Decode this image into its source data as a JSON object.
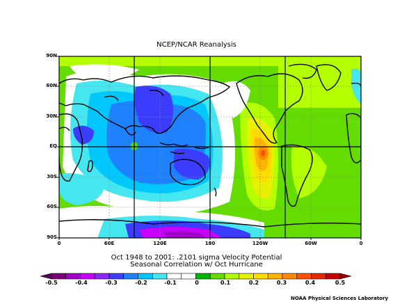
{
  "title": "NCEP/NCAR Reanalysis",
  "subtitle_line1": "Oct 1948 to 2001: .2101 sigma Velocity Potential",
  "subtitle_line2": "Seasonal Correlation w/ Oct Hurricane",
  "credit": "NOAA Physical Sciences Laboratory",
  "lat_labels": [
    "90N",
    "60N",
    "30N",
    "EQ",
    "30S",
    "60S",
    "90S"
  ],
  "lon_labels": [
    "0",
    "60E",
    "120E",
    "180",
    "120W",
    "60W",
    "0"
  ],
  "colorbar": {
    "labels": [
      "-0.5",
      "-0.4",
      "-0.3",
      "-0.2",
      "-0.1",
      "0",
      "0.1",
      "0.2",
      "0.3",
      "0.4",
      "0.5"
    ],
    "colors": [
      "#7a007a",
      "#a000c8",
      "#c800ff",
      "#8c28ff",
      "#3c3cff",
      "#1e82ff",
      "#00c8ff",
      "#46e6f0",
      "#ffffff",
      "#ffffff",
      "#00b400",
      "#64dc00",
      "#b4ff00",
      "#e6f000",
      "#ffdc00",
      "#ffb400",
      "#ff8c00",
      "#ff5000",
      "#e62800",
      "#c80000"
    ]
  },
  "map": {
    "bounds": "90N-90S, 0-360",
    "projection": "cylindrical"
  }
}
